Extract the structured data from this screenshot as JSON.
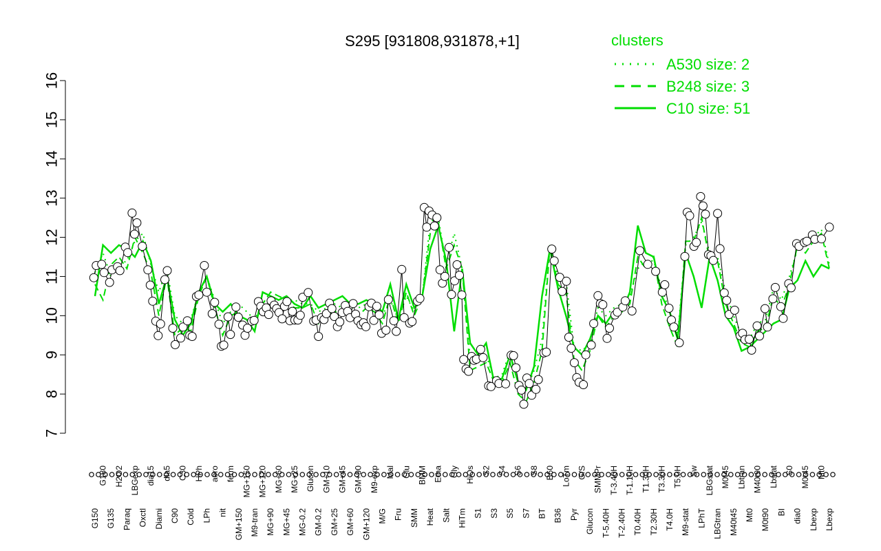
{
  "chart_data": {
    "type": "line",
    "title": "S295 [931808,931878,+1]",
    "xlabel": "",
    "ylabel": "",
    "ylim": [
      7,
      16
    ],
    "yticks": [
      7,
      8,
      9,
      10,
      11,
      12,
      13,
      14,
      15,
      16
    ],
    "grid": false,
    "legend": {
      "title": "clusters",
      "placement": "top-right",
      "color": "#00dd00",
      "entries": [
        {
          "label": "A530 size: 2",
          "style": "dotted"
        },
        {
          "label": "B248 size: 3",
          "style": "dashed"
        },
        {
          "label": "C10 size: 51",
          "style": "solid"
        }
      ]
    },
    "x_tick_labels": [
      "G150",
      "G180",
      "G135",
      "H2O2",
      "Paraq",
      "LBGexp",
      "Oxctl",
      "dia15",
      "Diami",
      "dia5",
      "C90",
      "C30",
      "Cold",
      "HPh",
      "LPh",
      "aero",
      "nit",
      "ferm",
      "GM+150",
      "MG+150",
      "M9-tran",
      "MG+120",
      "MG+90",
      "MG+60",
      "MG+45",
      "MG+25",
      "MG-0.2",
      "Glucon",
      "GM-0.2",
      "GM+10",
      "GM+25",
      "GM+45",
      "GM+60",
      "GM+90",
      "GM+120",
      "M9-exp",
      "M/G",
      "Mal",
      "Fru",
      "Glu",
      "SMM",
      "BMM",
      "Heat",
      "Etha",
      "Salt",
      "Gly",
      "HiTm",
      "HiOs",
      "S1",
      "S2",
      "S3",
      "S4",
      "S5",
      "S6",
      "S7",
      "S8",
      "BT",
      "B60",
      "B36",
      "LoTm",
      "Pyr",
      "G/S",
      "Glucon",
      "SMMPr",
      "T-5.40H",
      "T-3.40H",
      "T-2.40H",
      "T-1.10H",
      "T0.40H",
      "T1.30H",
      "T2.30H",
      "T3.30H",
      "T4.0H",
      "T5.0H",
      "M9-stat",
      "Sw",
      "LPhT",
      "LBGstat",
      "LBGtran",
      "M0t45",
      "M40t45",
      "Lbtran",
      "Mt0",
      "M40t90",
      "M0t90",
      "Lbstat",
      "BI",
      "S0",
      "dia0",
      "M0t45",
      "Lbexp",
      "Mt0",
      "Lbexp"
    ],
    "series": [
      {
        "name": "A530 size: 2",
        "style": "dotted",
        "values": [
          11.1,
          11.6,
          11.0,
          11.3,
          11.4,
          11.9,
          12.1,
          11.3,
          10.6,
          11.2,
          10.0,
          9.8,
          9.9,
          10.6,
          11.0,
          10.4,
          9.8,
          10.1,
          10.3,
          10.1,
          9.9,
          10.3,
          10.6,
          10.5,
          10.4,
          10.4,
          10.3,
          10.3,
          10.1,
          10.2,
          10.3,
          10.2,
          10.3,
          10.2,
          10.3,
          10.2,
          10.0,
          10.4,
          9.9,
          10.5,
          10.1,
          10.5,
          12.4,
          12.5,
          11.3,
          12.1,
          11.2,
          8.9,
          8.9,
          9.0,
          8.4,
          8.5,
          9.1,
          8.3,
          8.1,
          8.6,
          9.4,
          11.8,
          11.0,
          10.9,
          9.2,
          9.1,
          9.3,
          10.2,
          10.0,
          10.2,
          10.3,
          10.5,
          11.2,
          11.4,
          11.4,
          10.7,
          10.1,
          9.5,
          11.8,
          12.0,
          12.4,
          11.6,
          11.5,
          10.6,
          10.0,
          9.5,
          9.4,
          9.8,
          9.9,
          10.7,
          10.4,
          11.0,
          11.7,
          11.8,
          12.0,
          12.2,
          11.3
        ]
      },
      {
        "name": "B248 size: 3",
        "style": "dashed",
        "values": [
          10.8,
          10.4,
          11.3,
          11.5,
          11.2,
          12.0,
          11.6,
          11.1,
          10.0,
          11.0,
          9.5,
          9.7,
          9.6,
          10.5,
          11.0,
          10.2,
          9.5,
          10.0,
          10.1,
          9.7,
          9.8,
          10.3,
          10.6,
          10.5,
          10.4,
          10.2,
          10.2,
          10.3,
          9.8,
          10.0,
          10.1,
          10.1,
          10.3,
          10.0,
          10.2,
          10.1,
          9.8,
          10.5,
          9.8,
          10.6,
          10.0,
          10.5,
          12.1,
          12.4,
          11.2,
          11.8,
          11.2,
          8.6,
          8.7,
          8.8,
          8.3,
          8.3,
          8.8,
          8.0,
          7.8,
          8.3,
          9.1,
          11.8,
          10.8,
          10.6,
          8.9,
          8.6,
          9.1,
          10.0,
          9.7,
          10.0,
          10.1,
          10.3,
          11.5,
          11.2,
          11.5,
          10.3,
          9.7,
          9.2,
          11.9,
          11.9,
          12.5,
          11.4,
          11.4,
          10.3,
          9.8,
          9.3,
          9.2,
          9.6,
          9.7,
          10.5,
          10.2,
          10.8,
          11.8,
          11.6,
          11.9,
          12.1,
          11.2
        ]
      },
      {
        "name": "C10 size: 51",
        "style": "solid",
        "values": [
          10.5,
          11.8,
          11.6,
          11.8,
          11.7,
          11.5,
          11.9,
          11.4,
          10.3,
          11.0,
          9.9,
          9.5,
          9.8,
          10.6,
          11.0,
          10.3,
          10.1,
          10.3,
          10.0,
          9.9,
          9.6,
          10.6,
          10.5,
          10.4,
          10.5,
          10.3,
          10.2,
          10.5,
          10.2,
          10.3,
          10.4,
          10.5,
          10.3,
          10.3,
          10.4,
          10.3,
          10.1,
          10.8,
          9.9,
          10.8,
          10.2,
          10.5,
          11.7,
          12.3,
          11.4,
          9.6,
          11.2,
          9.3,
          9.0,
          9.3,
          8.3,
          8.4,
          9.0,
          8.3,
          8.1,
          8.7,
          10.5,
          11.7,
          10.7,
          10.0,
          9.2,
          9.0,
          9.4,
          10.0,
          9.8,
          10.1,
          10.1,
          10.6,
          12.3,
          11.6,
          11.5,
          10.5,
          10.1,
          9.4,
          11.6,
          11.0,
          10.2,
          11.5,
          10.9,
          10.0,
          9.7,
          9.1,
          9.2,
          9.4,
          9.6,
          9.8,
          9.9,
          10.7,
          10.9,
          11.4,
          11.0,
          11.3,
          11.2
        ]
      }
    ],
    "points": [
      {
        "label": "G150",
        "values": [
          10.97,
          11.28
        ]
      },
      {
        "label": "G180",
        "values": [
          11.31,
          11.1
        ]
      },
      {
        "label": "G135",
        "values": [
          10.85,
          11.17
        ]
      },
      {
        "label": "H2O2",
        "values": [
          11.25,
          11.15
        ]
      },
      {
        "label": "Paraq",
        "values": [
          11.75,
          11.61
        ]
      },
      {
        "label": "LBGexp",
        "values": [
          12.62,
          12.08,
          12.37
        ]
      },
      {
        "label": "Oxctl",
        "values": [
          11.77
        ]
      },
      {
        "label": "dia15",
        "values": [
          11.17,
          10.78,
          10.37
        ]
      },
      {
        "label": "Diami",
        "values": [
          9.86,
          9.49,
          9.79
        ]
      },
      {
        "label": "dia5",
        "values": [
          10.92,
          11.15
        ]
      },
      {
        "label": "C90",
        "values": [
          9.68,
          9.26
        ]
      },
      {
        "label": "C30",
        "values": [
          9.43,
          9.71
        ]
      },
      {
        "label": "Cold",
        "values": [
          9.87,
          9.5,
          9.47
        ]
      },
      {
        "label": "HPh",
        "values": [
          10.49,
          10.53
        ]
      },
      {
        "label": "LPh",
        "values": [
          11.28,
          10.6
        ]
      },
      {
        "label": "aero",
        "values": [
          10.05,
          10.34
        ]
      },
      {
        "label": "nit",
        "values": [
          9.78,
          9.22,
          9.25
        ]
      },
      {
        "label": "ferm",
        "values": [
          9.97,
          9.52
        ]
      },
      {
        "label": "GM+150",
        "values": [
          10.22,
          9.96
        ]
      },
      {
        "label": "MG+150",
        "values": [
          9.76,
          9.5,
          9.68
        ]
      },
      {
        "label": "M9-tran",
        "values": [
          9.86,
          9.88
        ]
      },
      {
        "label": "MG+120",
        "values": [
          10.36,
          10.24,
          10.1
        ]
      },
      {
        "label": "MG+90",
        "values": [
          10.2,
          10.03,
          10.38
        ]
      },
      {
        "label": "MG+60",
        "values": [
          10.27,
          10.18,
          10.08
        ]
      },
      {
        "label": "MG+45",
        "values": [
          9.92,
          10.24,
          10.36
        ]
      },
      {
        "label": "MG+25",
        "values": [
          9.87,
          10.11,
          9.89
        ]
      },
      {
        "label": "MG-0.2",
        "values": [
          9.89,
          10.01,
          10.47
        ]
      },
      {
        "label": "Glucon",
        "values": [
          10.59
        ]
      },
      {
        "label": "GM-0.2",
        "values": [
          9.86,
          9.89,
          9.47
        ]
      },
      {
        "label": "GM+10",
        "values": [
          9.95,
          9.9,
          10.05
        ]
      },
      {
        "label": "GM+25",
        "values": [
          10.32,
          10.18,
          9.98
        ]
      },
      {
        "label": "GM+45",
        "values": [
          9.72,
          9.84,
          10.08
        ]
      },
      {
        "label": "GM+60",
        "values": [
          10.26,
          10.11,
          9.95
        ]
      },
      {
        "label": "GM+90",
        "values": [
          10.31,
          10.04,
          9.87
        ]
      },
      {
        "label": "GM+120",
        "values": [
          9.77,
          9.82,
          9.72
        ]
      },
      {
        "label": "M9-exp",
        "values": [
          10.23,
          10.32,
          9.88
        ]
      },
      {
        "label": "M/G",
        "values": [
          10.24,
          10.02,
          9.55
        ]
      },
      {
        "label": "Mal",
        "values": [
          9.63,
          10.41
        ]
      },
      {
        "label": "Fru",
        "values": [
          9.87,
          9.6
        ]
      },
      {
        "label": "Glu",
        "values": [
          11.18,
          9.95
        ]
      },
      {
        "label": "SMM",
        "values": [
          9.81,
          9.85
        ]
      },
      {
        "label": "BMM",
        "values": [
          10.37,
          10.44
        ]
      },
      {
        "label": "Heat",
        "values": [
          12.76,
          12.26,
          12.67
        ]
      },
      {
        "label": "Etha",
        "values": [
          12.57,
          12.29,
          12.5
        ]
      },
      {
        "label": "Salt",
        "values": [
          11.17,
          10.83,
          11.0
        ]
      },
      {
        "label": "Gly",
        "values": [
          11.74,
          10.54
        ]
      },
      {
        "label": "HiTm",
        "values": [
          10.89,
          11.3,
          11.03,
          10.53
        ]
      },
      {
        "label": "HiOs",
        "values": [
          8.88,
          8.64,
          8.58
        ]
      },
      {
        "label": "S1",
        "values": [
          8.96,
          8.86,
          8.89
        ]
      },
      {
        "label": "S2",
        "values": [
          9.14,
          8.93
        ]
      },
      {
        "label": "S3",
        "values": [
          8.21,
          8.19
        ]
      },
      {
        "label": "S4",
        "values": [
          8.34,
          8.27
        ]
      },
      {
        "label": "S3b",
        "values": [
          8.26
        ]
      },
      {
        "label": "S5",
        "values": [
          8.99,
          8.98,
          8.67
        ]
      },
      {
        "label": "S6",
        "values": [
          8.22,
          8.1,
          7.74
        ]
      },
      {
        "label": "S7",
        "values": [
          8.41,
          8.27,
          7.97
        ]
      },
      {
        "label": "S8",
        "values": [
          8.12,
          8.37
        ]
      },
      {
        "label": "BT",
        "values": [
          9.05,
          9.07
        ]
      },
      {
        "label": "B60",
        "values": [
          11.7,
          11.4
        ]
      },
      {
        "label": "B36",
        "values": [
          10.98,
          10.62
        ]
      },
      {
        "label": "LoTm",
        "values": [
          10.88,
          9.45,
          9.17
        ]
      },
      {
        "label": "Pyr",
        "values": [
          8.8,
          8.42,
          8.3
        ]
      },
      {
        "label": "G/S",
        "values": [
          8.24,
          9.0
        ]
      },
      {
        "label": "Glucon2",
        "values": [
          9.25,
          9.8
        ]
      },
      {
        "label": "SMMPr",
        "values": [
          10.51,
          10.31,
          10.28
        ]
      },
      {
        "label": "T-5.40H",
        "values": [
          9.42,
          9.68
        ]
      },
      {
        "label": "T-3.40H",
        "values": [
          10.02,
          10.09
        ]
      },
      {
        "label": "T-2.40H",
        "values": [
          10.22,
          10.38
        ]
      },
      {
        "label": "T-1.10H",
        "values": [
          10.12
        ]
      },
      {
        "label": "T0.40H",
        "values": [
          11.66
        ]
      },
      {
        "label": "T1.30H",
        "values": [
          11.31
        ]
      },
      {
        "label": "T2.30H",
        "values": [
          11.13
        ]
      },
      {
        "label": "T3.30H",
        "values": [
          10.6,
          10.79
        ]
      },
      {
        "label": "T4.0H",
        "values": [
          10.19,
          9.89,
          9.71
        ]
      },
      {
        "label": "T5.0H",
        "values": [
          9.31
        ]
      },
      {
        "label": "M9-stat",
        "values": [
          11.51,
          12.64,
          12.55
        ]
      },
      {
        "label": "Sw",
        "values": [
          11.77,
          11.87
        ]
      },
      {
        "label": "LPhT",
        "values": [
          13.04,
          12.8,
          12.59
        ]
      },
      {
        "label": "LBGstat",
        "values": [
          11.56,
          11.53,
          11.41
        ]
      },
      {
        "label": "LBGtran",
        "values": [
          12.61,
          11.71
        ]
      },
      {
        "label": "M0t45",
        "values": [
          10.58,
          10.39,
          10.03
        ]
      },
      {
        "label": "M40t45",
        "values": [
          10.14
        ]
      },
      {
        "label": "Lbtran",
        "values": [
          9.49,
          9.55,
          9.39
        ]
      },
      {
        "label": "Mt0",
        "values": [
          9.4,
          9.12
        ]
      },
      {
        "label": "M40t90",
        "values": [
          9.74,
          9.48
        ]
      },
      {
        "label": "M0t90",
        "values": [
          10.18,
          9.71
        ]
      },
      {
        "label": "Lbstat",
        "values": [
          10.43,
          10.72
        ]
      },
      {
        "label": "BI",
        "values": [
          10.23,
          9.93
        ]
      },
      {
        "label": "S0",
        "values": [
          10.82,
          10.71
        ]
      },
      {
        "label": "dia0",
        "values": [
          11.84,
          11.77
        ]
      },
      {
        "label": "M0t45b",
        "values": [
          11.87,
          11.9
        ]
      },
      {
        "label": "Lbexp",
        "values": [
          12.06,
          11.95
        ]
      },
      {
        "label": "Mt0b",
        "values": [
          11.96
        ]
      },
      {
        "label": "Lbexp2",
        "values": [
          12.26
        ]
      }
    ]
  }
}
